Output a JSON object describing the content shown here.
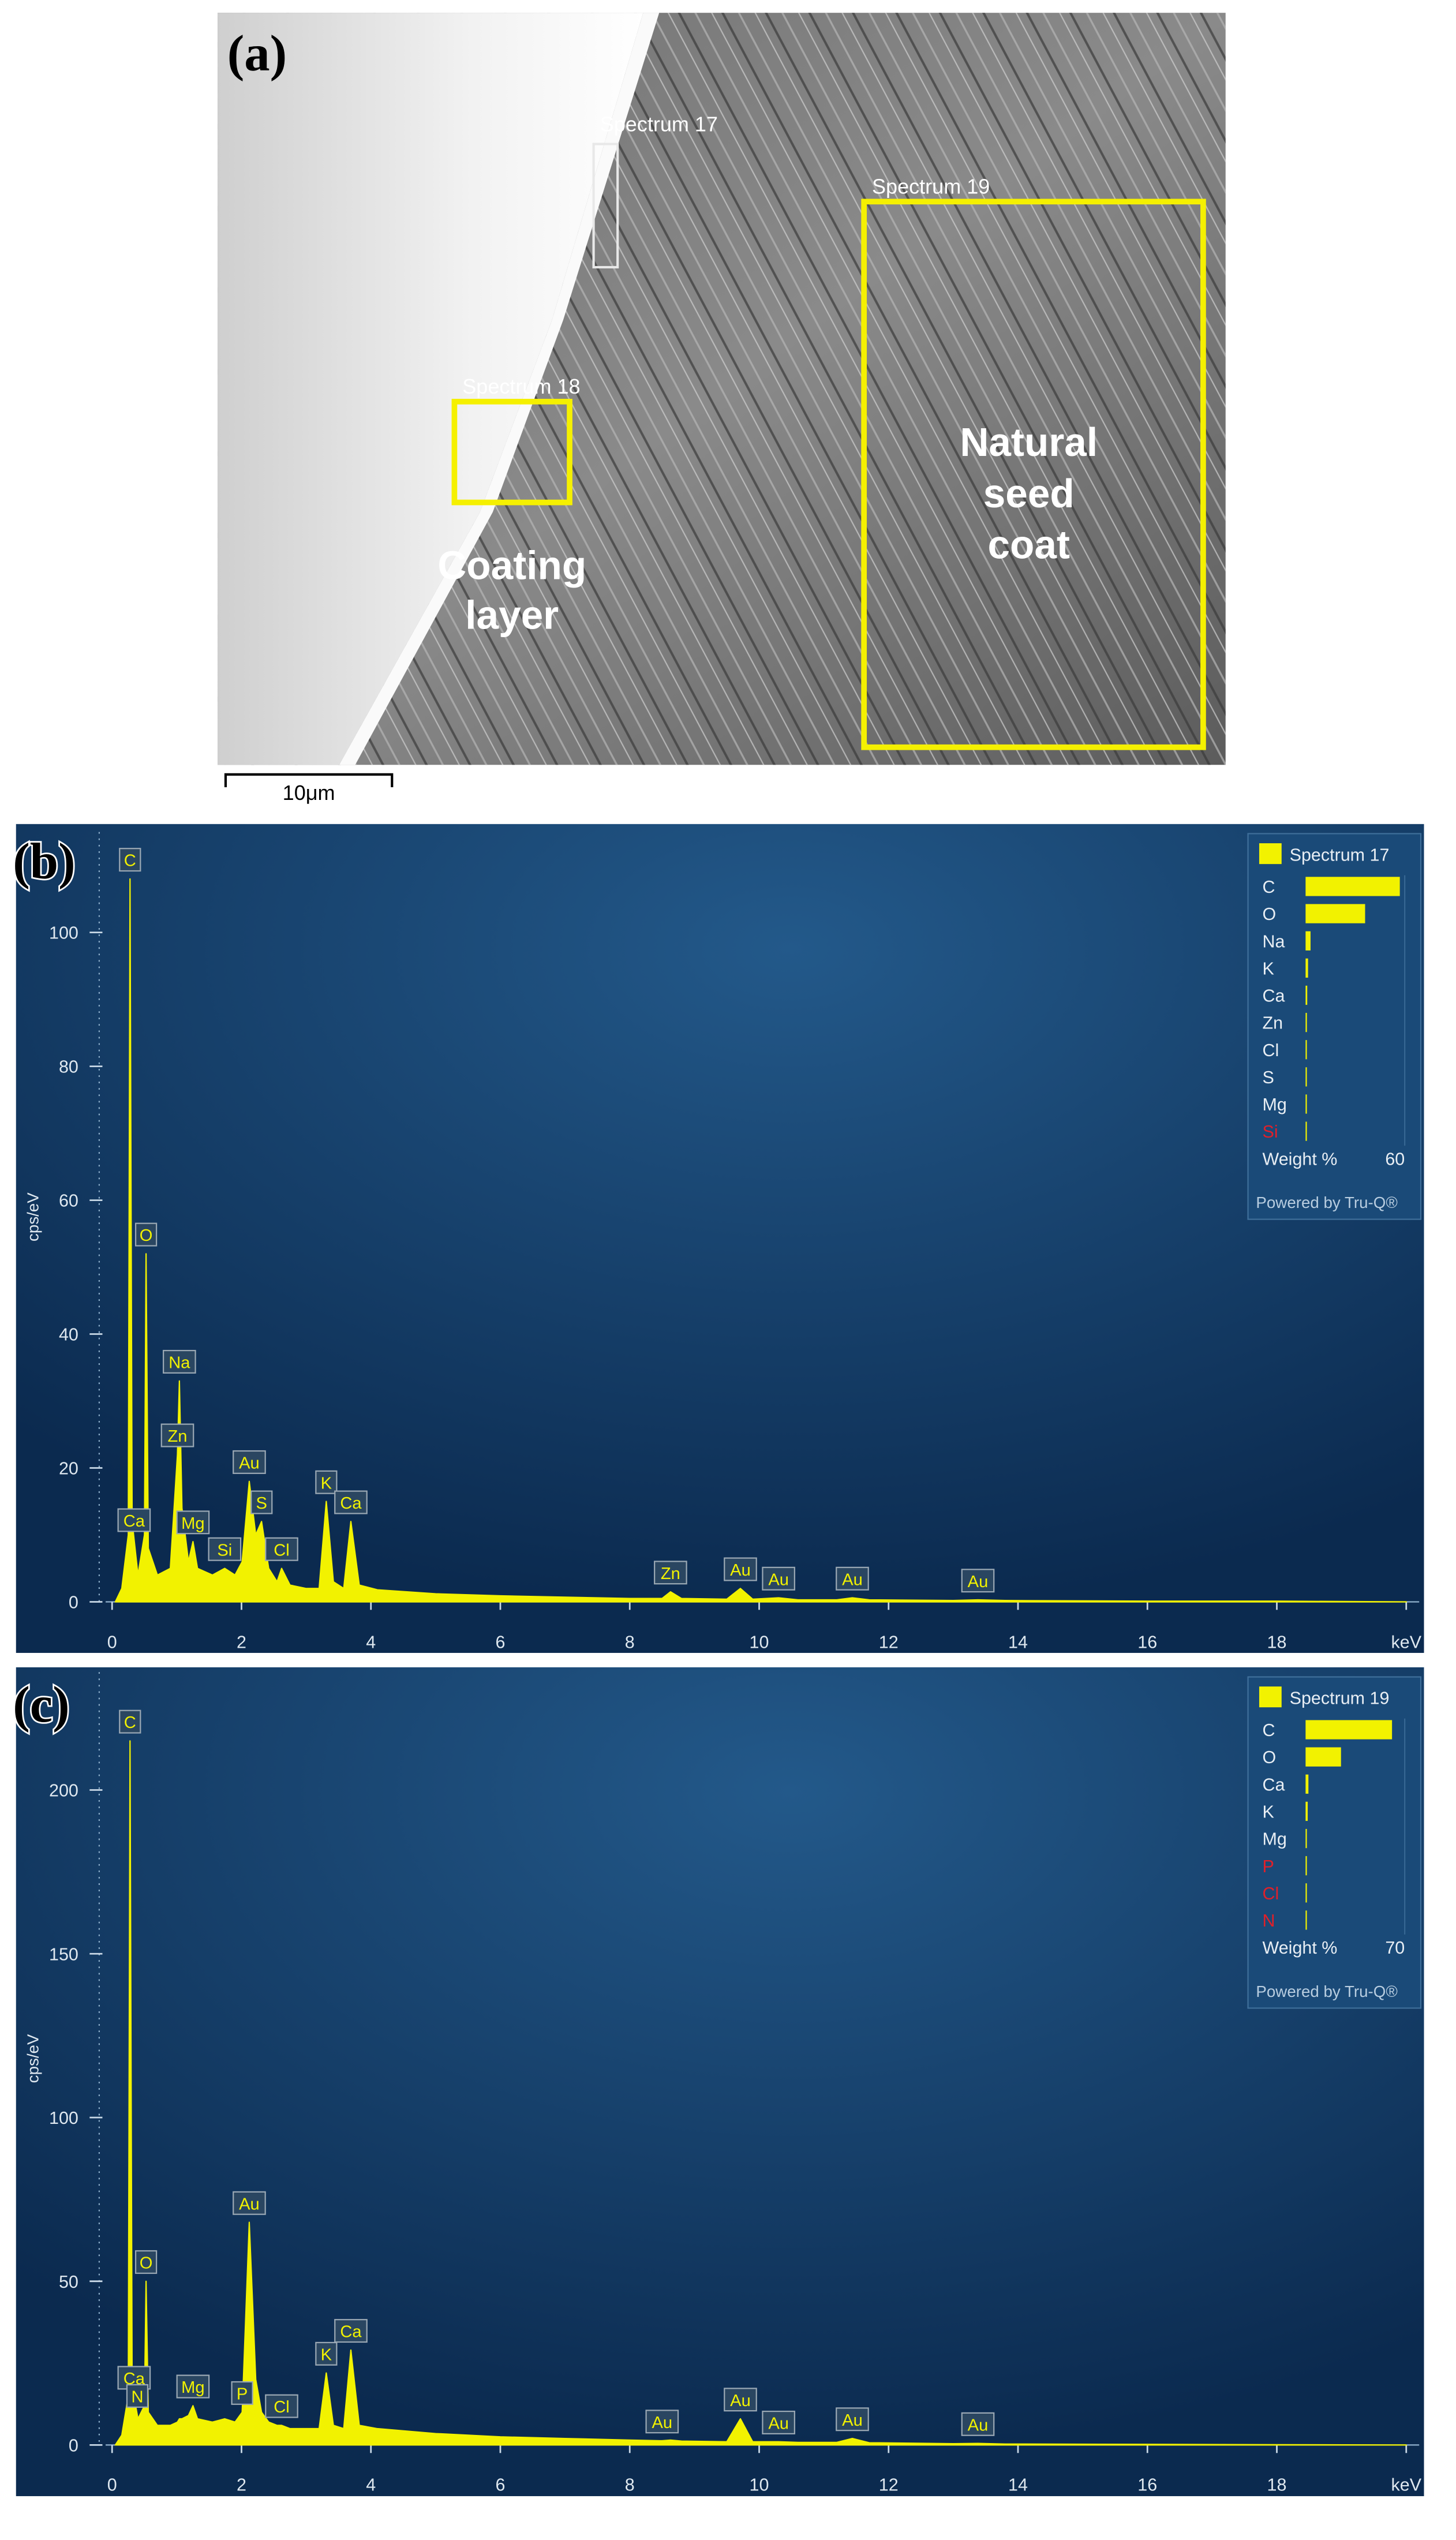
{
  "image_panel": {
    "panel_label": "(a)",
    "spectrum_labels": [
      "Spectrum 17",
      "Spectrum 18",
      "Spectrum 19"
    ],
    "seed_coat_label": [
      "Natural",
      "seed",
      "coat"
    ],
    "coating_label": [
      "Coating",
      "layer"
    ],
    "scale_bar": "10μm"
  },
  "chart_data": [
    {
      "type": "area",
      "panel_label": "(b)",
      "y_label": "cps/eV",
      "color": "#f2f200",
      "x": [
        0.05,
        0.15,
        0.25,
        0.277,
        0.31,
        0.4,
        0.5,
        0.525,
        0.56,
        0.7,
        0.9,
        1.01,
        1.04,
        1.08,
        1.18,
        1.25,
        1.32,
        1.55,
        1.74,
        1.9,
        2.01,
        2.12,
        2.22,
        2.31,
        2.42,
        2.55,
        2.62,
        2.75,
        3.0,
        3.2,
        3.31,
        3.42,
        3.58,
        3.69,
        3.82,
        4.1,
        5,
        6,
        7,
        8,
        8.5,
        8.63,
        8.8,
        9.5,
        9.71,
        9.9,
        10.3,
        10.6,
        11.2,
        11.44,
        11.7,
        13,
        13.38,
        13.8,
        16,
        18,
        20
      ],
      "values": [
        0,
        2,
        10,
        108,
        12,
        4,
        10,
        52,
        8,
        4,
        5,
        22,
        33,
        14,
        6,
        9,
        5,
        4,
        5,
        4,
        6,
        18,
        10,
        12,
        5,
        3,
        5,
        2.5,
        2,
        2,
        15,
        3,
        2,
        12,
        2.5,
        1.8,
        1.2,
        0.9,
        0.7,
        0.5,
        0.5,
        1.5,
        0.5,
        0.4,
        2,
        0.4,
        0.6,
        0.3,
        0.3,
        0.6,
        0.3,
        0.2,
        0.3,
        0.2,
        0.1,
        0.1,
        0
      ],
      "xlim": [
        -0.1,
        20.2
      ],
      "xticks": [
        0,
        2,
        4,
        6,
        8,
        10,
        12,
        14,
        16,
        18,
        {
          "value": 20,
          "label": "keV"
        }
      ],
      "ylim": [
        -5,
        115
      ],
      "yticks": [
        0,
        20,
        40,
        60,
        80,
        100
      ],
      "peak_labels": [
        {
          "label": "C",
          "x": 0.277
        },
        {
          "label": "O",
          "x": 0.525
        },
        {
          "label": "Na",
          "x": 1.04
        },
        {
          "label": "Zn",
          "x": 1.01
        },
        {
          "label": "Mg",
          "x": 1.25
        },
        {
          "label": "Si",
          "x": 1.74
        },
        {
          "label": "Au",
          "x": 2.12
        },
        {
          "label": "S",
          "x": 2.31
        },
        {
          "label": "Cl",
          "x": 2.62
        },
        {
          "label": "K",
          "x": 3.31
        },
        {
          "label": "Ca",
          "x": 3.69
        },
        {
          "label": "Ca",
          "x": 0.34
        },
        {
          "label": "Zn",
          "x": 8.63
        },
        {
          "label": "Au",
          "x": 9.71
        },
        {
          "label": "Au",
          "x": 10.3
        },
        {
          "label": "Au",
          "x": 11.44
        },
        {
          "label": "Au",
          "x": 13.38
        }
      ],
      "legend": {
        "title": "Spectrum 17",
        "axis_label": "Weight %",
        "xlim": [
          0,
          60
        ],
        "xticks": [
          60
        ],
        "footer": "Powered by Tru-Q®",
        "elements": [
          {
            "name": "C",
            "value": 57
          },
          {
            "name": "O",
            "value": 36
          },
          {
            "name": "Na",
            "value": 3
          },
          {
            "name": "K",
            "value": 1.5
          },
          {
            "name": "Ca",
            "value": 1
          },
          {
            "name": "Zn",
            "value": 0.8
          },
          {
            "name": "Cl",
            "value": 0.4
          },
          {
            "name": "S",
            "value": 0.3
          },
          {
            "name": "Mg",
            "value": 0.3
          },
          {
            "name": "Si",
            "value": 0.1,
            "color": "#e0202a"
          }
        ]
      }
    },
    {
      "type": "area",
      "panel_label": "(c)",
      "y_label": "cps/eV",
      "color": "#f2f200",
      "x": [
        0.05,
        0.15,
        0.25,
        0.277,
        0.31,
        0.4,
        0.5,
        0.525,
        0.56,
        0.7,
        0.9,
        1.01,
        1.04,
        1.08,
        1.18,
        1.25,
        1.32,
        1.55,
        1.74,
        1.9,
        2.01,
        2.12,
        2.22,
        2.31,
        2.42,
        2.55,
        2.62,
        2.75,
        3.0,
        3.2,
        3.31,
        3.42,
        3.58,
        3.69,
        3.82,
        4.1,
        5,
        6,
        7,
        8,
        8.5,
        8.63,
        8.8,
        9.5,
        9.71,
        9.9,
        10.3,
        10.6,
        11.2,
        11.44,
        11.7,
        13,
        13.38,
        13.8,
        16,
        18,
        20
      ],
      "values": [
        0,
        3,
        15,
        215,
        18,
        8,
        12,
        50,
        10,
        6,
        6,
        7,
        8,
        8,
        9,
        12,
        8,
        7,
        8,
        7,
        10,
        68,
        20,
        10,
        7,
        6,
        6,
        5,
        5,
        5,
        22,
        6,
        5,
        29,
        6,
        5,
        3.5,
        2.5,
        2,
        1.5,
        1.3,
        1.5,
        1.2,
        1,
        8,
        1,
        1,
        0.8,
        0.8,
        2,
        0.7,
        0.4,
        0.5,
        0.3,
        0.2,
        0.1,
        0
      ],
      "xlim": [
        -0.1,
        20.2
      ],
      "xticks": [
        0,
        2,
        4,
        6,
        8,
        10,
        12,
        14,
        16,
        18,
        {
          "value": 20,
          "label": "keV"
        }
      ],
      "ylim": [
        -10,
        236
      ],
      "yticks": [
        0,
        50,
        100,
        150,
        200
      ],
      "peak_labels": [
        {
          "label": "C",
          "x": 0.277
        },
        {
          "label": "Ca",
          "x": 0.34
        },
        {
          "label": "N",
          "x": 0.39
        },
        {
          "label": "O",
          "x": 0.525
        },
        {
          "label": "Mg",
          "x": 1.25
        },
        {
          "label": "P",
          "x": 2.01
        },
        {
          "label": "Au",
          "x": 2.12
        },
        {
          "label": "Cl",
          "x": 2.62
        },
        {
          "label": "K",
          "x": 3.31
        },
        {
          "label": "Ca",
          "x": 3.69
        },
        {
          "label": "Au",
          "x": 8.5
        },
        {
          "label": "Au",
          "x": 9.71
        },
        {
          "label": "Au",
          "x": 10.3
        },
        {
          "label": "Au",
          "x": 11.44
        },
        {
          "label": "Au",
          "x": 13.38
        }
      ],
      "legend": {
        "title": "Spectrum 19",
        "axis_label": "Weight %",
        "xlim": [
          0,
          70
        ],
        "xticks": [
          70
        ],
        "footer": "Powered by Tru-Q®",
        "elements": [
          {
            "name": "C",
            "value": 61
          },
          {
            "name": "O",
            "value": 25
          },
          {
            "name": "Ca",
            "value": 2
          },
          {
            "name": "K",
            "value": 1.5
          },
          {
            "name": "Mg",
            "value": 0.5
          },
          {
            "name": "P",
            "value": 0.3,
            "color": "#e0202a"
          },
          {
            "name": "Cl",
            "value": 0.3,
            "color": "#e0202a"
          },
          {
            "name": "N",
            "value": 0.2,
            "color": "#e0202a"
          }
        ]
      }
    }
  ]
}
